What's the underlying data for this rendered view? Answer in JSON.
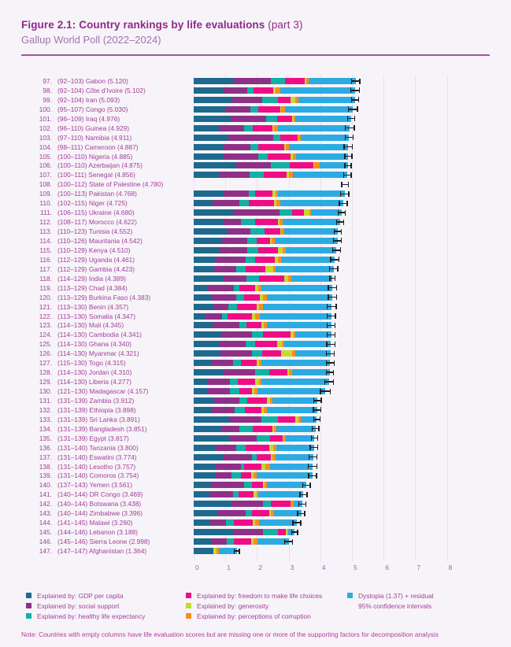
{
  "title": {
    "main": "Figure 2.1: Country rankings by life evaluations",
    "part": " (part 3)",
    "subtitle": "Gallup World Poll (2022–2024)"
  },
  "note": "Note: Countries with empty columns have life evaluation scores but are missing one or more of the supporting factors for decomposition analysis",
  "colors": {
    "gdp": "#1d6a8e",
    "social": "#8f3087",
    "health": "#13b1a5",
    "freedom": "#ef0d86",
    "generosity": "#c5d92e",
    "corruption": "#f68d1e",
    "dystopia": "#2babe2",
    "ci": "#231f20",
    "title": "#8e2a8a",
    "subtitle": "#9e74ab",
    "rule": "#a4569f",
    "label": "#a23f98",
    "axis": "#a95fa5",
    "grid": "#eedcec",
    "note": "#b13a9c"
  },
  "legend": {
    "columns": [
      [
        {
          "key": "gdp",
          "label": "Explained by: GDP per capita"
        },
        {
          "key": "social",
          "label": "Explained by: social support"
        },
        {
          "key": "health",
          "label": "Explained by: healthy life expectancy"
        }
      ],
      [
        {
          "key": "freedom",
          "label": "Explained by: freedom to make life choices"
        },
        {
          "key": "generosity",
          "label": "Explained by: generosity"
        },
        {
          "key": "corruption",
          "label": "Explained by: perceptions of corruption"
        }
      ],
      [
        {
          "key": "dystopia",
          "label": "Dystopia (1.37) + residual"
        },
        {
          "key": "ci",
          "label": "95% confidence intervals"
        }
      ]
    ]
  },
  "chart_data": {
    "type": "bar",
    "orientation": "horizontal",
    "stacked": true,
    "xlim": [
      0,
      8
    ],
    "x_ticks": [
      "0",
      "1",
      "2",
      "3",
      "4",
      "5",
      "6",
      "7",
      "8"
    ],
    "grid": true,
    "series_names": [
      "Explained by: GDP per capita",
      "Explained by: social support",
      "Explained by: healthy life expectancy",
      "Explained by: freedom to make life choices",
      "Explained by: generosity",
      "Explained by: perceptions of corruption",
      "Dystopia (1.37) + residual"
    ],
    "rows": [
      {
        "rank": "97.",
        "range": "(92–103)",
        "country": "Gabon",
        "score": "5.120",
        "ci": 0.15,
        "segments": [
          1.25,
          1.2,
          0.44,
          0.62,
          0.04,
          0.09
        ]
      },
      {
        "rank": "98.",
        "range": "(92–104)",
        "country": "Côte d’Ivoire",
        "score": "5.102",
        "ci": 0.15,
        "segments": [
          0.92,
          0.78,
          0.19,
          0.62,
          0.09,
          0.15
        ]
      },
      {
        "rank": "99.",
        "range": "(92–104)",
        "country": "Iran",
        "score": "5.093",
        "ci": 0.13,
        "segments": [
          1.22,
          0.95,
          0.48,
          0.4,
          0.17,
          0.08
        ]
      },
      {
        "rank": "100.",
        "range": "(95–107)",
        "country": "Congo",
        "score": "5.030",
        "ci": 0.16,
        "segments": [
          1.0,
          0.8,
          0.25,
          0.68,
          0.04,
          0.12
        ]
      },
      {
        "rank": "101.",
        "range": "(96–109)",
        "country": "Iraq",
        "score": "4.976",
        "ci": 0.13,
        "segments": [
          1.18,
          1.1,
          0.35,
          0.48,
          0.05,
          0.05
        ]
      },
      {
        "rank": "102.",
        "range": "(96–110)",
        "country": "Guinea",
        "score": "4.929",
        "ci": 0.16,
        "segments": [
          0.8,
          0.78,
          0.28,
          0.62,
          0.06,
          0.11
        ]
      },
      {
        "rank": "103.",
        "range": "(97–110)",
        "country": "Namibia",
        "score": "4.911",
        "ci": 0.14,
        "segments": [
          1.1,
          1.42,
          0.22,
          0.55,
          0.03,
          0.07
        ]
      },
      {
        "rank": "104.",
        "range": "(98–111)",
        "country": "Cameroon",
        "score": "4.887",
        "ci": 0.15,
        "segments": [
          0.95,
          0.85,
          0.25,
          0.8,
          0.06,
          0.11
        ]
      },
      {
        "rank": "105.",
        "range": "(100–110)",
        "country": "Nigeria",
        "score": "4.885",
        "ci": 0.13,
        "segments": [
          0.95,
          1.1,
          0.28,
          0.72,
          0.09,
          0.1
        ]
      },
      {
        "rank": "106.",
        "range": "(100–110)",
        "country": "Azerbaijan",
        "score": "4.875",
        "ci": 0.12,
        "segments": [
          1.35,
          1.08,
          0.6,
          0.75,
          0.03,
          0.18
        ]
      },
      {
        "rank": "107.",
        "range": "(100–111)",
        "country": "Senegal",
        "score": "4.856",
        "ci": 0.14,
        "segments": [
          0.82,
          0.95,
          0.45,
          0.72,
          0.07,
          0.12
        ]
      },
      {
        "rank": "108.",
        "range": "(100–112)",
        "country": "State of Palestine",
        "score": "4.780",
        "ci": 0.12,
        "segments": null
      },
      {
        "rank": "109.",
        "range": "(100–113)",
        "country": "Pakistan",
        "score": "4.768",
        "ci": 0.15,
        "segments": [
          0.95,
          0.78,
          0.2,
          0.55,
          0.12,
          0.06
        ]
      },
      {
        "rank": "110.",
        "range": "(102–115)",
        "country": "Niger",
        "score": "4.725",
        "ci": 0.14,
        "segments": [
          0.6,
          0.85,
          0.28,
          0.8,
          0.08,
          0.12
        ]
      },
      {
        "rank": "111.",
        "range": "(106–115)",
        "country": "Ukraine",
        "score": "4.680",
        "ci": 0.13,
        "segments": [
          1.25,
          1.45,
          0.4,
          0.38,
          0.18,
          0.05
        ]
      },
      {
        "rank": "112.",
        "range": "(108–117)",
        "country": "Morocco",
        "score": "4.622",
        "ci": 0.13,
        "segments": [
          0.95,
          0.55,
          0.45,
          0.72,
          0.03,
          0.1
        ]
      },
      {
        "rank": "113.",
        "range": "(110–123)",
        "country": "Tunisia",
        "score": "4.552",
        "ci": 0.13,
        "segments": [
          1.05,
          0.75,
          0.45,
          0.48,
          0.04,
          0.08
        ]
      },
      {
        "rank": "114.",
        "range": "(110–126)",
        "country": "Mauritania",
        "score": "4.542",
        "ci": 0.14,
        "segments": [
          0.9,
          0.8,
          0.3,
          0.42,
          0.05,
          0.1
        ]
      },
      {
        "rank": "115.",
        "range": "(110–129)",
        "country": "Kenya",
        "score": "4.510",
        "ci": 0.14,
        "segments": [
          0.8,
          0.9,
          0.35,
          0.62,
          0.14,
          0.09
        ]
      },
      {
        "rank": "116.",
        "range": "(112–129)",
        "country": "Uganda",
        "score": "4.461",
        "ci": 0.15,
        "segments": [
          0.7,
          0.95,
          0.3,
          0.62,
          0.1,
          0.09
        ]
      },
      {
        "rank": "117.",
        "range": "(112–129)",
        "country": "Gambia",
        "score": "4.423",
        "ci": 0.15,
        "segments": [
          0.65,
          0.7,
          0.3,
          0.62,
          0.25,
          0.08
        ]
      },
      {
        "rank": "118.",
        "range": "(114–129)",
        "country": "India",
        "score": "4.389",
        "ci": 0.1,
        "segments": [
          0.95,
          0.72,
          0.4,
          0.78,
          0.14,
          0.1
        ]
      },
      {
        "rank": "119.",
        "range": "(113–129)",
        "country": "Chad",
        "score": "4.384",
        "ci": 0.15,
        "segments": [
          0.42,
          0.85,
          0.18,
          0.48,
          0.12,
          0.08
        ]
      },
      {
        "rank": "120.",
        "range": "(113–129)",
        "country": "Burkina Faso",
        "score": "4.383",
        "ci": 0.15,
        "segments": [
          0.55,
          0.8,
          0.25,
          0.5,
          0.09,
          0.12
        ]
      },
      {
        "rank": "121.",
        "range": "(113–130)",
        "country": "Benin",
        "score": "4.357",
        "ci": 0.16,
        "segments": [
          0.65,
          0.45,
          0.28,
          0.6,
          0.08,
          0.12
        ]
      },
      {
        "rank": "122.",
        "range": "(113–130)",
        "country": "Somalia",
        "score": "4.347",
        "ci": 0.15,
        "segments": [
          0.35,
          0.55,
          0.18,
          0.75,
          0.11,
          0.14
        ]
      },
      {
        "rank": "123.",
        "range": "(114–130)",
        "country": "Mali",
        "score": "4.345",
        "ci": 0.14,
        "segments": [
          0.6,
          0.85,
          0.22,
          0.48,
          0.07,
          0.1
        ]
      },
      {
        "rank": "124.",
        "range": "(114–130)",
        "country": "Cambodia",
        "score": "4.341",
        "ci": 0.14,
        "segments": [
          0.9,
          0.95,
          0.35,
          0.85,
          0.1,
          0.07
        ]
      },
      {
        "rank": "125.",
        "range": "(114–130)",
        "country": "Ghana",
        "score": "4.340",
        "ci": 0.15,
        "segments": [
          0.8,
          0.85,
          0.3,
          0.7,
          0.13,
          0.07
        ]
      },
      {
        "rank": "126.",
        "range": "(114–130)",
        "country": "Myanmar",
        "score": "4.321",
        "ci": 0.14,
        "segments": [
          0.85,
          1.0,
          0.32,
          0.6,
          0.35,
          0.1
        ]
      },
      {
        "rank": "127.",
        "range": "(115–130)",
        "country": "Togo",
        "score": "4.315",
        "ci": 0.14,
        "segments": [
          0.55,
          0.7,
          0.25,
          0.5,
          0.06,
          0.09
        ]
      },
      {
        "rank": "128.",
        "range": "(114–130)",
        "country": "Jordan",
        "score": "4.310",
        "ci": 0.13,
        "segments": [
          0.95,
          1.0,
          0.45,
          0.55,
          0.05,
          0.1
        ]
      },
      {
        "rank": "129.",
        "range": "(114–130)",
        "country": "Liberia",
        "score": "4.277",
        "ci": 0.15,
        "segments": [
          0.45,
          0.7,
          0.25,
          0.55,
          0.12,
          0.08
        ]
      },
      {
        "rank": "130.",
        "range": "(121–130)",
        "country": "Madagascar",
        "score": "4.157",
        "ci": 0.17,
        "segments": [
          0.45,
          0.7,
          0.3,
          0.4,
          0.07,
          0.09
        ]
      },
      {
        "rank": "131.",
        "range": "(131–139)",
        "country": "Zambia",
        "score": "3.912",
        "ci": 0.14,
        "segments": [
          0.65,
          0.8,
          0.25,
          0.62,
          0.09,
          0.09
        ]
      },
      {
        "rank": "132.",
        "range": "(131–139)",
        "country": "Ethiopia",
        "score": "3.898",
        "ci": 0.13,
        "segments": [
          0.55,
          0.75,
          0.32,
          0.52,
          0.08,
          0.1
        ]
      },
      {
        "rank": "133.",
        "range": "(131–139)",
        "country": "Sri Lanka",
        "score": "3.891",
        "ci": 0.12,
        "segments": [
          1.15,
          1.0,
          0.5,
          0.55,
          0.12,
          0.06
        ]
      },
      {
        "rank": "134.",
        "range": "(131–139)",
        "country": "Bangladesh",
        "score": "3.851",
        "ci": 0.12,
        "segments": [
          0.9,
          0.55,
          0.42,
          0.62,
          0.05,
          0.07
        ]
      },
      {
        "rank": "135.",
        "range": "(131–139)",
        "country": "Egypt",
        "score": "3.817",
        "ci": 0.12,
        "segments": [
          1.15,
          0.85,
          0.42,
          0.4,
          0.02,
          0.06
        ]
      },
      {
        "rank": "136.",
        "range": "(131–140)",
        "country": "Tanzania",
        "score": "3.800",
        "ci": 0.14,
        "segments": [
          0.7,
          0.65,
          0.3,
          0.75,
          0.12,
          0.09
        ]
      },
      {
        "rank": "137.",
        "range": "(131–140)",
        "country": "Eswatini",
        "score": "3.774",
        "ci": 0.14,
        "segments": [
          0.95,
          0.9,
          0.15,
          0.45,
          0.05,
          0.08
        ]
      },
      {
        "rank": "138.",
        "range": "(131–140)",
        "country": "Lesotho",
        "score": "3.757",
        "ci": 0.15,
        "segments": [
          0.7,
          0.8,
          0.1,
          0.55,
          0.12,
          0.15
        ]
      },
      {
        "rank": "139.",
        "range": "(131–140)",
        "country": "Comoros",
        "score": "3.754",
        "ci": 0.14,
        "segments": [
          0.7,
          0.5,
          0.3,
          0.32,
          0.08,
          0.1
        ]
      },
      {
        "rank": "140.",
        "range": "(137–143)",
        "country": "Yemen",
        "score": "3.561",
        "ci": 0.14,
        "segments": [
          0.55,
          1.05,
          0.25,
          0.35,
          0.03,
          0.08
        ]
      },
      {
        "rank": "141.",
        "range": "(140–144)",
        "country": "DR Congo",
        "score": "3.469",
        "ci": 0.13,
        "segments": [
          0.5,
          0.75,
          0.18,
          0.45,
          0.1,
          0.05
        ]
      },
      {
        "rank": "142.",
        "range": "(140–144)",
        "country": "Botswana",
        "score": "3.438",
        "ci": 0.13,
        "segments": [
          1.2,
          1.0,
          0.25,
          0.6,
          0.02,
          0.1
        ]
      },
      {
        "rank": "143.",
        "range": "(140–144)",
        "country": "Zimbabwe",
        "score": "3.396",
        "ci": 0.13,
        "segments": [
          0.78,
          0.85,
          0.2,
          0.55,
          0.06,
          0.09
        ]
      },
      {
        "rank": "144.",
        "range": "(141–145)",
        "country": "Malawi",
        "score": "3.260",
        "ci": 0.14,
        "segments": [
          0.52,
          0.5,
          0.25,
          0.6,
          0.08,
          0.12
        ]
      },
      {
        "rank": "145.",
        "range": "(144–146)",
        "country": "Lebanon",
        "score": "3.188",
        "ci": 0.11,
        "segments": [
          1.25,
          0.95,
          0.45,
          0.25,
          0.05,
          0.03
        ]
      },
      {
        "rank": "146.",
        "range": "(145–146)",
        "country": "Sierra Leone",
        "score": "2.998",
        "ci": 0.14,
        "segments": [
          0.55,
          0.5,
          0.22,
          0.55,
          0.08,
          0.12
        ]
      },
      {
        "rank": "147.",
        "range": "(147–147)",
        "country": "Afghanistan",
        "score": "1.364",
        "ci": 0.1,
        "segments": [
          0.63,
          0.0,
          0.0,
          0.0,
          0.08,
          0.09
        ]
      }
    ]
  }
}
